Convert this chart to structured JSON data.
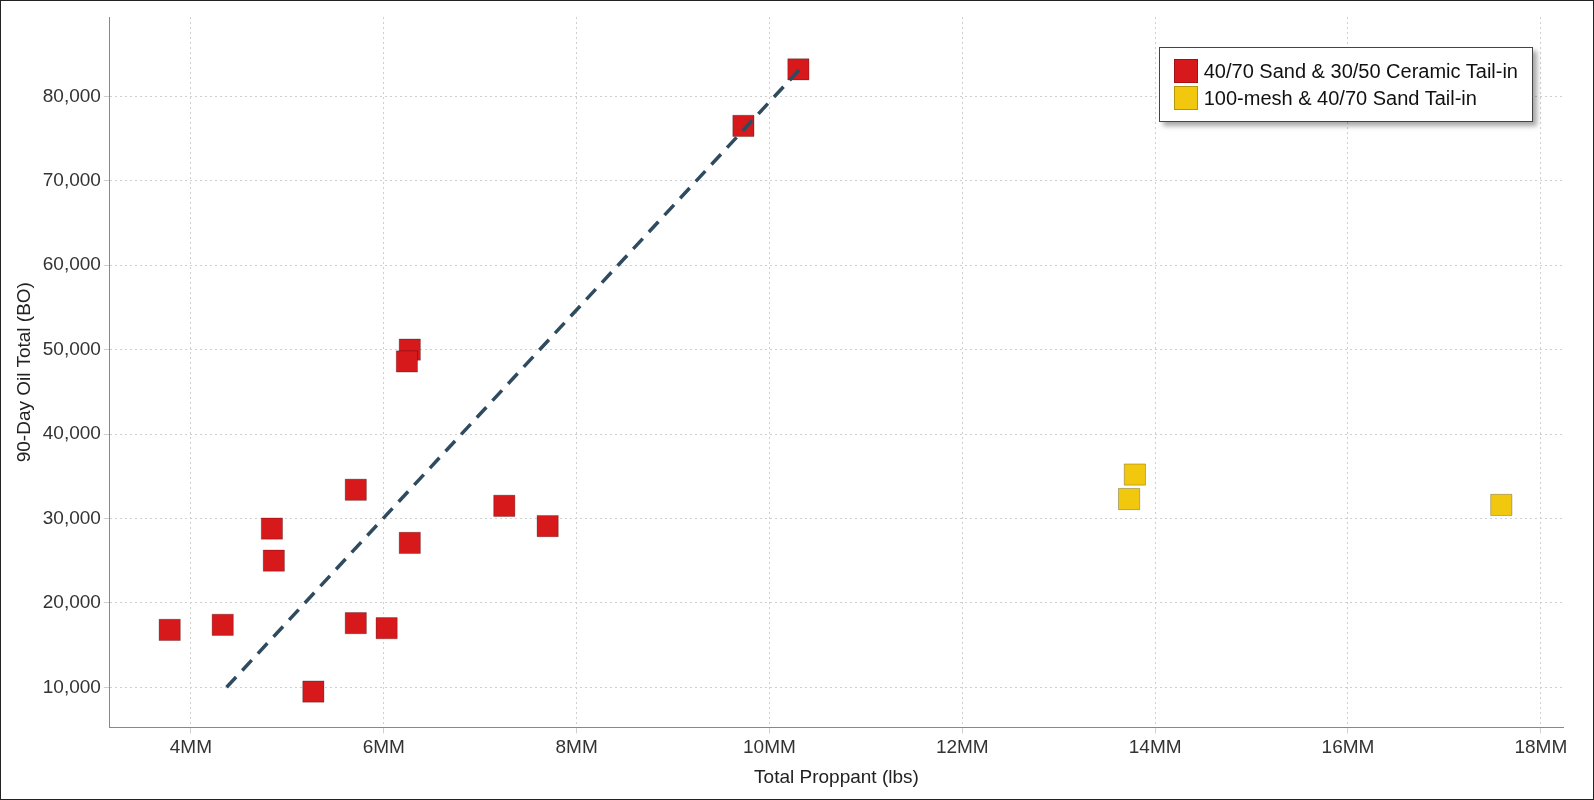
{
  "chart_data": {
    "type": "scatter",
    "xlabel": "Total Proppant (lbs)",
    "ylabel": "90-Day Oil Total (BO)",
    "xlim": [
      3.16,
      18.23
    ],
    "ylim": [
      5250,
      89400
    ],
    "xticks": [
      {
        "value": 4,
        "label": "4MM"
      },
      {
        "value": 6,
        "label": "6MM"
      },
      {
        "value": 8,
        "label": "8MM"
      },
      {
        "value": 10,
        "label": "10MM"
      },
      {
        "value": 12,
        "label": "12MM"
      },
      {
        "value": 14,
        "label": "14MM"
      },
      {
        "value": 16,
        "label": "16MM"
      },
      {
        "value": 18,
        "label": "18MM"
      }
    ],
    "yticks": [
      {
        "value": 10000,
        "label": "10,000"
      },
      {
        "value": 20000,
        "label": "20,000"
      },
      {
        "value": 30000,
        "label": "30,000"
      },
      {
        "value": 40000,
        "label": "40,000"
      },
      {
        "value": 50000,
        "label": "50,000"
      },
      {
        "value": 60000,
        "label": "60,000"
      },
      {
        "value": 70000,
        "label": "70,000"
      },
      {
        "value": 80000,
        "label": "80,000"
      }
    ],
    "grid": true,
    "legend": "top right",
    "marker": "square",
    "series": [
      {
        "name": "40/70 Sand & 30/50 Ceramic Tail-in",
        "color": "#d7191c",
        "x": [
          3.78,
          4.33,
          4.84,
          4.86,
          5.27,
          5.71,
          5.71,
          6.03,
          6.27,
          6.24,
          6.27,
          7.25,
          7.7,
          9.73,
          10.3
        ],
        "values": [
          16800,
          17400,
          28800,
          25000,
          9500,
          33400,
          17600,
          17000,
          50000,
          48600,
          27100,
          31500,
          29100,
          76500,
          83200
        ]
      },
      {
        "name": "100-mesh & 40/70 Sand Tail-in",
        "color": "#f2c80f",
        "x": [
          13.79,
          13.73,
          17.59
        ],
        "values": [
          35200,
          32300,
          31600
        ]
      },
      {
        "type": "line",
        "color": "#2f4b60",
        "line_style": "dashed",
        "marker": "none",
        "x": [
          4.37,
          10.33
        ],
        "values": [
          10000,
          83400
        ]
      }
    ]
  }
}
